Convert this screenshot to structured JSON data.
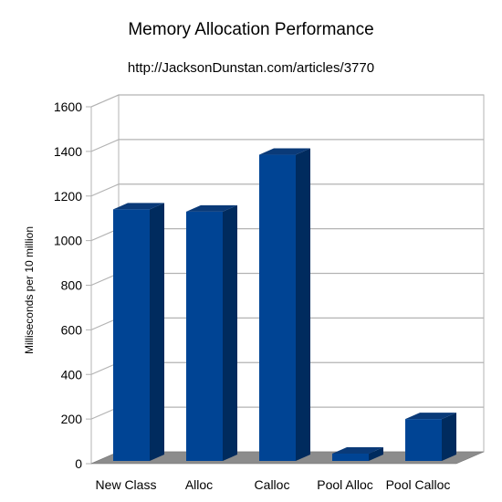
{
  "chart_data": {
    "type": "bar",
    "title": "Memory Allocation Performance",
    "subtitle": "http://JacksonDunstan.com/articles/3770",
    "xlabel": "",
    "ylabel": "Milliseconds per 10 million",
    "categories": [
      "New Class",
      "Alloc",
      "Calloc",
      "Pool Alloc",
      "Pool Calloc"
    ],
    "values": [
      1140,
      1130,
      1385,
      45,
      200
    ],
    "ylim": [
      0,
      1600
    ],
    "yticks": [
      "0",
      "200",
      "400",
      "600",
      "800",
      "1000",
      "1200",
      "1400",
      "1600"
    ],
    "grid": true,
    "three_d": true,
    "colors": {
      "bar_front": "#004494",
      "bar_side": "#002b5e",
      "bar_top": "#0a3a78",
      "floor": "#8c8c8c",
      "grid": "#b3b3b3"
    }
  }
}
